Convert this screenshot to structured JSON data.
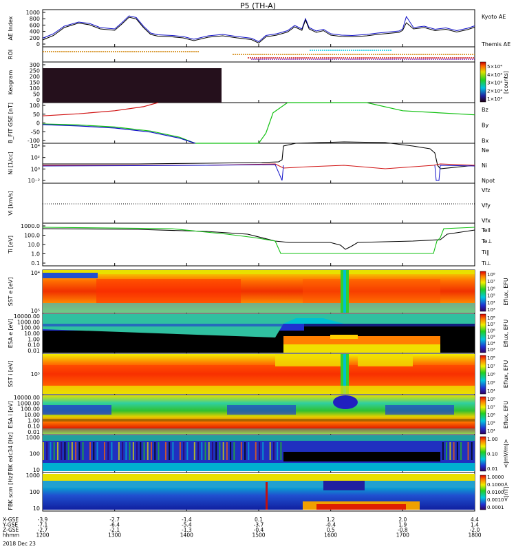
{
  "title": "P5 (TH-A)",
  "colors": {
    "blue": "#1010c8",
    "red": "#d01010",
    "green": "#10c010",
    "black": "#000000",
    "orange": "#d08000",
    "cyan": "#00c8e0",
    "purple": "#7000a0"
  },
  "chart_data": {
    "type": "multi-panel time series and spectrograms",
    "time_ticks": [
      "1200",
      "1300",
      "1400",
      "1500",
      "1600",
      "1700",
      "1800"
    ],
    "time_range": [
      1200,
      1800
    ],
    "bottom_rows": [
      {
        "label": "X-GSE",
        "values": [
          "-3.9",
          "-2.7",
          "-1.4",
          "0.1",
          "1.2",
          "2.0",
          "4.4"
        ]
      },
      {
        "label": "Y-GSE",
        "values": [
          "-7.1",
          "-6.4",
          "-5.4",
          "-3.7",
          "-0.4",
          "1.9",
          "1.4"
        ]
      },
      {
        "label": "Z-GSE",
        "values": [
          "-2.7",
          "-2.1",
          "-1.3",
          "-0.4",
          "0.5",
          "-0.8",
          "-2.0"
        ]
      },
      {
        "label": "hhmm",
        "values": [
          "1200",
          "1300",
          "1400",
          "1500",
          "1600",
          "1700",
          "1800"
        ]
      }
    ],
    "date_label": "2018 Dec 23",
    "panels": [
      {
        "id": "ae",
        "ylabel": "AE Index",
        "ylim": [
          0,
          1000
        ],
        "yticks": [
          "1000",
          "800",
          "600",
          "400",
          "200",
          "0"
        ],
        "legend": [
          {
            "text": "Kyoto AE",
            "color": "#1010c8"
          },
          {
            "text": "Themis AE",
            "color": "#000000"
          }
        ],
        "series": [
          {
            "name": "Kyoto AE",
            "x": [
              1200,
              1215,
              1230,
              1250,
              1265,
              1280,
              1300,
              1310,
              1320,
              1330,
              1340,
              1350,
              1360,
              1380,
              1395,
              1410,
              1430,
              1450,
              1470,
              1490,
              1500,
              1510,
              1525,
              1540,
              1550,
              1560,
              1565,
              1570,
              1580,
              1590,
              1600,
              1615,
              1630,
              1650,
              1665,
              1680,
              1695,
              1700,
              1705,
              1715,
              1730,
              1745,
              1760,
              1775,
              1790,
              1800
            ],
            "y": [
              250,
              380,
              600,
              720,
              680,
              560,
              520,
              700,
              900,
              850,
              600,
              400,
              350,
              330,
              300,
              220,
              320,
              360,
              300,
              250,
              150,
              330,
              380,
              470,
              620,
              520,
              820,
              560,
              460,
              510,
              380,
              340,
              330,
              360,
              400,
              430,
              460,
              520,
              880,
              560,
              600,
              510,
              550,
              470,
              540,
              610
            ]
          },
          {
            "name": "Themis AE",
            "x": [
              1200,
              1215,
              1230,
              1250,
              1265,
              1280,
              1300,
              1310,
              1320,
              1330,
              1340,
              1350,
              1360,
              1380,
              1395,
              1410,
              1430,
              1450,
              1470,
              1490,
              1500,
              1510,
              1525,
              1540,
              1550,
              1560,
              1565,
              1570,
              1580,
              1590,
              1600,
              1615,
              1630,
              1650,
              1665,
              1680,
              1695,
              1700,
              1705,
              1715,
              1730,
              1745,
              1760,
              1775,
              1790,
              1800
            ],
            "y": [
              200,
              330,
              560,
              690,
              640,
              520,
              480,
              660,
              860,
              810,
              560,
              360,
              310,
              290,
              260,
              180,
              280,
              320,
              260,
              210,
              110,
              290,
              340,
              430,
              580,
              480,
              780,
              520,
              420,
              470,
              340,
              300,
              290,
              320,
              360,
              390,
              420,
              480,
              700,
              520,
              560,
              470,
              510,
              430,
              500,
              570
            ]
          }
        ]
      },
      {
        "id": "roi",
        "ylabel": "ROI",
        "note": "region-of-interest flag bars"
      },
      {
        "id": "keogram",
        "ylabel": "Keogram",
        "ylim": [
          0,
          300
        ],
        "yticks": [
          "300",
          "250",
          "200",
          "150",
          "100",
          "50",
          "0"
        ],
        "colorbar": {
          "label": "[counts]",
          "ticks": [
            "5×10⁴",
            "4×10⁴",
            "3×10⁴",
            "2×10⁴",
            "1×10⁴"
          ]
        }
      },
      {
        "id": "bfit",
        "ylabel": "B_FIT GSE [nT]",
        "ylim": [
          -100,
          100
        ],
        "yticks": [
          "100",
          "50",
          "0",
          "-50",
          "-100"
        ],
        "legend": [
          {
            "text": "Bz",
            "color": "#d01010"
          },
          {
            "text": "By",
            "color": "#10c010"
          },
          {
            "text": "Bx",
            "color": "#1010c8"
          }
        ],
        "series": [
          {
            "name": "Bz",
            "x": [
              1200,
              1250,
              1300,
              1340,
              1360
            ],
            "y": [
              35,
              45,
              60,
              80,
              100
            ]
          },
          {
            "name": "By",
            "x": [
              1200,
              1250,
              1300,
              1350,
              1390,
              1412,
              1500,
              1510,
              1520,
              1540,
              1620,
              1650,
              1700,
              1800
            ],
            "y": [
              -5,
              -10,
              -20,
              -40,
              -70,
              -100,
              -100,
              -50,
              50,
              100,
              100,
              100,
              60,
              40
            ]
          },
          {
            "name": "Bx",
            "x": [
              1200,
              1250,
              1300,
              1350,
              1390,
              1412
            ],
            "y": [
              -8,
              -15,
              -25,
              -45,
              -75,
              -100
            ]
          }
        ]
      },
      {
        "id": "ni",
        "ylabel": "Ni [1/cc]",
        "yticks": [
          "10⁴",
          "10²",
          "10⁰",
          "10⁻²"
        ],
        "legend": [
          {
            "text": "Ne",
            "color": "#d01010"
          },
          {
            "text": "Ni",
            "color": "#000000"
          },
          {
            "text": "Npot",
            "color": "#1010c8"
          }
        ]
      },
      {
        "id": "vi",
        "ylabel": "Vi [km/s]",
        "legend": [
          {
            "text": "Vfz",
            "color": "#d01010"
          },
          {
            "text": "Vfy",
            "color": "#10c010"
          },
          {
            "text": "Vfx",
            "color": "#1010c8"
          }
        ]
      },
      {
        "id": "ti",
        "ylabel": "Ti [eV]",
        "yticks": [
          "1000.0",
          "100.0",
          "10.0",
          "1.0",
          "0.1"
        ],
        "legend": [
          {
            "text": "Tell",
            "color": "#000000"
          },
          {
            "text": "Te⊥",
            "color": "#d01010"
          },
          {
            "text": "Ti∥",
            "color": "#10c010"
          },
          {
            "text": "Ti⊥",
            "color": "#1010c8"
          }
        ]
      },
      {
        "id": "sst_e",
        "ylabel": "SST e [eV]",
        "yticks": [
          "10⁴",
          "10⁵"
        ],
        "colorbar": {
          "label": "Eflux, EFU",
          "ticks": [
            "10⁸",
            "10⁷",
            "10⁶",
            "10⁵",
            "10⁴",
            "10³"
          ]
        }
      },
      {
        "id": "esa_e",
        "ylabel": "ESA e [eV]",
        "yticks": [
          "10000.00",
          "1000.00",
          "100.00",
          "10.00",
          "1.00",
          "0.10",
          "0.01"
        ],
        "colorbar": {
          "label": "Eflux, EFU",
          "ticks": [
            "10⁸",
            "10⁷",
            "10⁶",
            "10⁵",
            "10⁴",
            "10³"
          ]
        }
      },
      {
        "id": "sst_i",
        "ylabel": "SST i [eV]",
        "yticks": [
          "10⁵"
        ],
        "colorbar": {
          "label": "Eflux, EFU",
          "ticks": [
            "10⁸",
            "10⁷",
            "10⁶",
            "10⁵",
            "10⁴"
          ]
        }
      },
      {
        "id": "esa_i",
        "ylabel": "ESA i [eV]",
        "yticks": [
          "10000.00",
          "1000.00",
          "100.00",
          "10.00",
          "1.00",
          "0.10",
          "0.01"
        ],
        "colorbar": {
          "label": "Eflux, EFU",
          "ticks": [
            "10⁸",
            "10⁷",
            "10⁶",
            "10⁵",
            "10⁴"
          ]
        }
      },
      {
        "id": "fbk_edc",
        "ylabel": "FBK edc34 [Hz]",
        "yticks": [
          "1000",
          "100",
          "10"
        ],
        "colorbar": {
          "label": "<|mV/m|>",
          "ticks": [
            "1.00",
            "0.10",
            "0.01"
          ]
        }
      },
      {
        "id": "fbk_scm",
        "ylabel": "FBK scm [Hz]",
        "yticks": [
          "1000",
          "100",
          "10"
        ],
        "colorbar": {
          "label": "<|nT|>",
          "ticks": [
            "1.0000",
            "0.1000",
            "0.0100",
            "0.0010",
            "0.0001"
          ]
        }
      }
    ]
  }
}
